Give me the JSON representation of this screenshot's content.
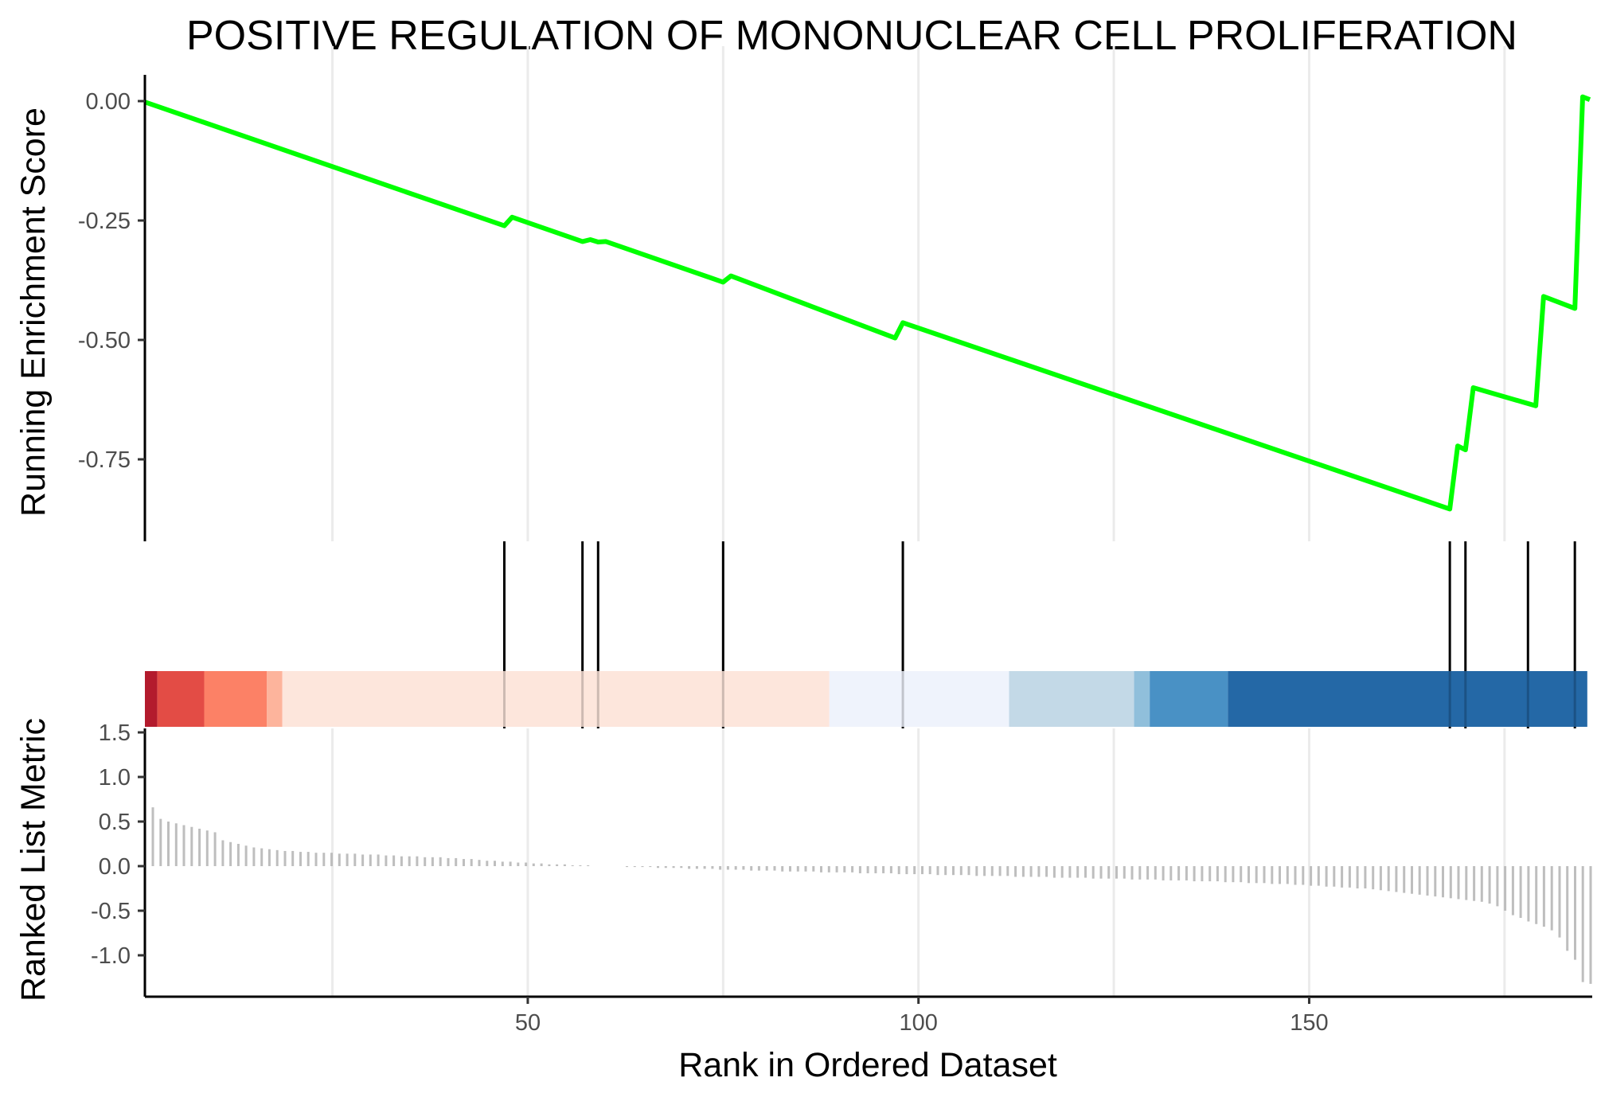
{
  "chart_data": {
    "type": "line",
    "title": "POSITIVE REGULATION OF MONONUCLEAR CELL PROLIFERATION",
    "xlabel": "Rank in Ordered Dataset",
    "ylabel_top": "Running Enrichment Score",
    "ylabel_bottom": "Ranked List Metric",
    "x_ticks": [
      50,
      100,
      150
    ],
    "y_ticks_top": [
      "0.00",
      "-0.25",
      "-0.50",
      "-0.75"
    ],
    "y_ticks_top_values": [
      0.0,
      -0.25,
      -0.5,
      -0.75
    ],
    "y_ticks_bottom": [
      "1.5",
      "1.0",
      "0.5",
      "0.0",
      "-0.5",
      "-1.0"
    ],
    "y_ticks_bottom_values": [
      1.5,
      1.0,
      0.5,
      0.0,
      -0.5,
      -1.0
    ],
    "xlim": [
      1,
      185
    ],
    "ylim_top": [
      -0.92,
      0.05
    ],
    "ylim_bottom": [
      -1.45,
      1.5
    ],
    "series": [
      {
        "color": "#00ff00",
        "x": [
          1,
          47,
          48,
          57,
          58,
          59,
          60,
          75,
          76,
          97,
          98,
          168,
          169,
          170,
          171,
          179,
          180,
          184,
          185,
          186
        ],
        "y": [
          -0.002,
          -0.261,
          -0.243,
          -0.294,
          -0.29,
          -0.295,
          -0.294,
          -0.379,
          -0.366,
          -0.496,
          -0.464,
          -0.854,
          -0.722,
          -0.73,
          -0.6,
          -0.638,
          -0.409,
          -0.434,
          0.009,
          0.003
        ]
      }
    ],
    "hit_ranks": [
      47,
      57,
      59,
      75,
      98,
      168,
      170,
      178,
      184
    ],
    "color_bands": [
      {
        "start": 1,
        "end": 3,
        "color": "#b2182b"
      },
      {
        "start": 3,
        "end": 9,
        "color": "#e34a43"
      },
      {
        "start": 9,
        "end": 17,
        "color": "#fc7f64"
      },
      {
        "start": 17,
        "end": 19,
        "color": "#fdb39b"
      },
      {
        "start": 19,
        "end": 89,
        "color": "#fde6dc"
      },
      {
        "start": 89,
        "end": 112,
        "color": "#eff3fc"
      },
      {
        "start": 112,
        "end": 128,
        "color": "#c2d9e7"
      },
      {
        "start": 128,
        "end": 130,
        "color": "#8fbedb"
      },
      {
        "start": 130,
        "end": 140,
        "color": "#4790c4"
      },
      {
        "start": 140,
        "end": 186,
        "color": "#2166a5"
      }
    ],
    "ranked_metric": [
      0.66,
      0.53,
      0.5,
      0.48,
      0.46,
      0.44,
      0.42,
      0.4,
      0.38,
      0.29,
      0.27,
      0.25,
      0.23,
      0.21,
      0.2,
      0.19,
      0.18,
      0.17,
      0.17,
      0.16,
      0.16,
      0.15,
      0.15,
      0.15,
      0.14,
      0.14,
      0.14,
      0.13,
      0.13,
      0.13,
      0.12,
      0.12,
      0.11,
      0.11,
      0.11,
      0.1,
      0.1,
      0.1,
      0.09,
      0.09,
      0.08,
      0.08,
      0.07,
      0.06,
      0.06,
      0.05,
      0.05,
      0.04,
      0.04,
      0.03,
      0.03,
      0.02,
      0.02,
      0.02,
      0.01,
      0.01,
      0.01,
      0.0,
      0.0,
      0.0,
      0.0,
      -0.01,
      -0.01,
      -0.01,
      -0.01,
      -0.02,
      -0.02,
      -0.02,
      -0.02,
      -0.03,
      -0.03,
      -0.03,
      -0.03,
      -0.04,
      -0.04,
      -0.04,
      -0.04,
      -0.05,
      -0.05,
      -0.05,
      -0.05,
      -0.06,
      -0.06,
      -0.06,
      -0.06,
      -0.06,
      -0.07,
      -0.07,
      -0.07,
      -0.07,
      -0.07,
      -0.08,
      -0.08,
      -0.08,
      -0.08,
      -0.08,
      -0.09,
      -0.09,
      -0.09,
      -0.09,
      -0.09,
      -0.1,
      -0.1,
      -0.1,
      -0.1,
      -0.1,
      -0.11,
      -0.11,
      -0.11,
      -0.11,
      -0.11,
      -0.12,
      -0.12,
      -0.12,
      -0.12,
      -0.12,
      -0.13,
      -0.13,
      -0.13,
      -0.13,
      -0.13,
      -0.14,
      -0.14,
      -0.14,
      -0.14,
      -0.14,
      -0.15,
      -0.15,
      -0.15,
      -0.15,
      -0.16,
      -0.16,
      -0.16,
      -0.16,
      -0.17,
      -0.17,
      -0.17,
      -0.17,
      -0.18,
      -0.18,
      -0.18,
      -0.19,
      -0.19,
      -0.19,
      -0.2,
      -0.2,
      -0.2,
      -0.21,
      -0.21,
      -0.22,
      -0.22,
      -0.23,
      -0.23,
      -0.24,
      -0.24,
      -0.25,
      -0.25,
      -0.26,
      -0.27,
      -0.28,
      -0.29,
      -0.3,
      -0.31,
      -0.32,
      -0.33,
      -0.34,
      -0.35,
      -0.36,
      -0.37,
      -0.38,
      -0.39,
      -0.4,
      -0.42,
      -0.45,
      -0.5,
      -0.55,
      -0.58,
      -0.62,
      -0.65,
      -0.68,
      -0.72,
      -0.8,
      -0.95,
      -1.05,
      -1.3,
      -1.32
    ]
  }
}
